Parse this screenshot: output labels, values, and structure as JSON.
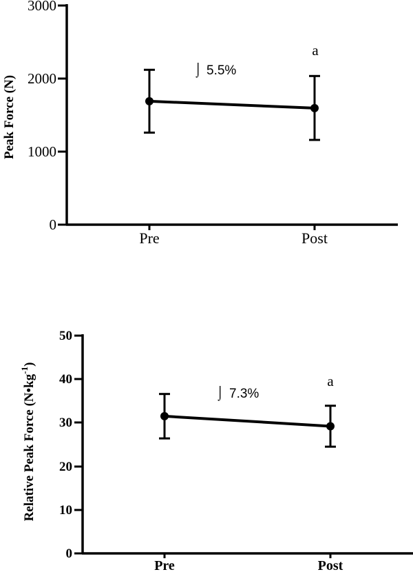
{
  "chart_data": [
    {
      "type": "line",
      "ylabel": "Peak Force (N)",
      "ylim": [
        0,
        3000
      ],
      "yticks": [
        "0",
        "1000",
        "2000",
        "3000"
      ],
      "categories": [
        "Pre",
        "Post"
      ],
      "series": [
        {
          "values": [
            1690,
            1595
          ],
          "error_low": [
            1260,
            1160
          ],
          "error_high": [
            2120,
            2035
          ]
        }
      ],
      "annotations": {
        "change_glyph": "⌡",
        "change": "5.5%",
        "significance": "a"
      },
      "grid": false
    },
    {
      "type": "line",
      "ylabel": "Relative Peak Force (N•kg",
      "ylabel_sup": "-1",
      "ylabel_close": ")",
      "ylim": [
        0,
        50
      ],
      "yticks": [
        "0",
        "10",
        "20",
        "30",
        "40",
        "50"
      ],
      "categories": [
        "Pre",
        "Post"
      ],
      "series": [
        {
          "values": [
            31.5,
            29.2
          ],
          "error_low": [
            26.4,
            24.5
          ],
          "error_high": [
            36.6,
            33.9
          ]
        }
      ],
      "annotations": {
        "change_glyph": "⌡",
        "change": "7.3%",
        "significance": "a"
      },
      "grid": false
    }
  ]
}
